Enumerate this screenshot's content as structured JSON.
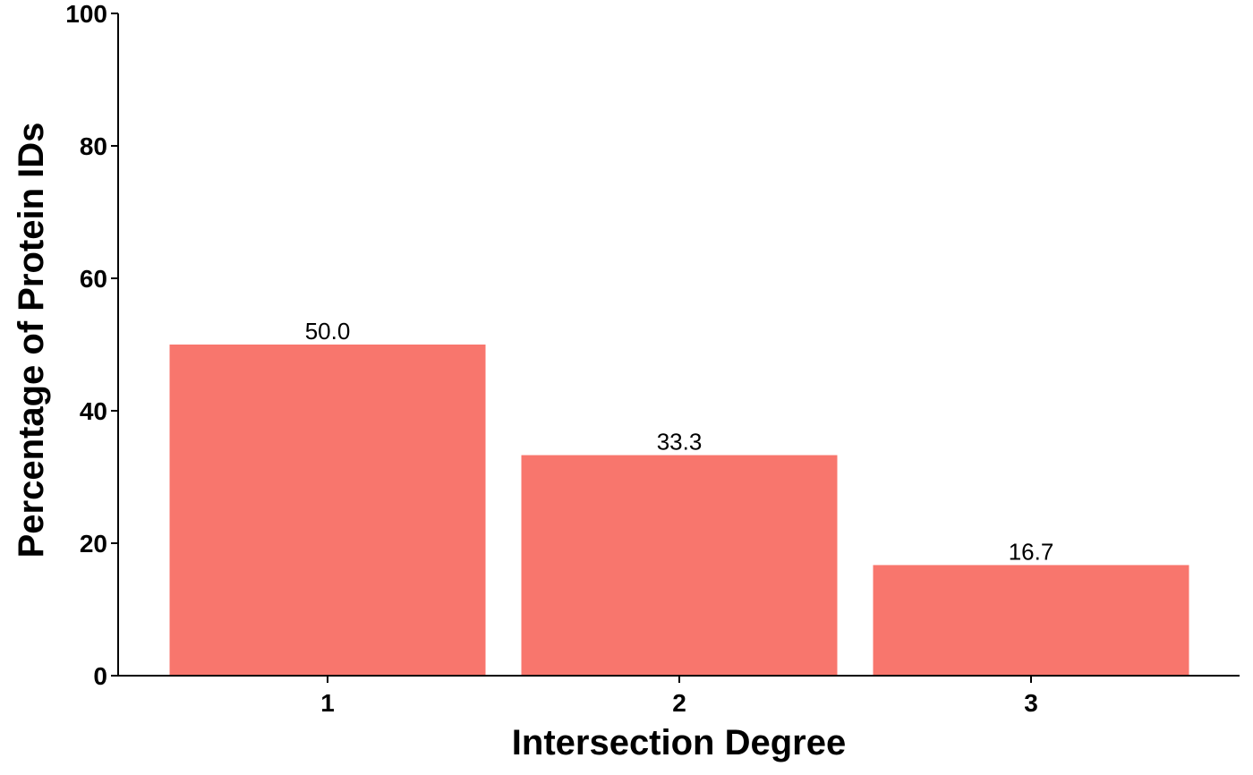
{
  "chart_data": {
    "type": "bar",
    "categories": [
      "1",
      "2",
      "3"
    ],
    "values": [
      50.0,
      33.3,
      16.7
    ],
    "value_labels": [
      "50.0",
      "33.3",
      "16.7"
    ],
    "title": "",
    "xlabel": "Intersection Degree",
    "ylabel": "Percentage of Protein IDs",
    "ylim": [
      0,
      100
    ],
    "yticks": [
      0,
      20,
      40,
      60,
      80,
      100
    ],
    "grid": false,
    "bar_color": "#F8766D"
  }
}
